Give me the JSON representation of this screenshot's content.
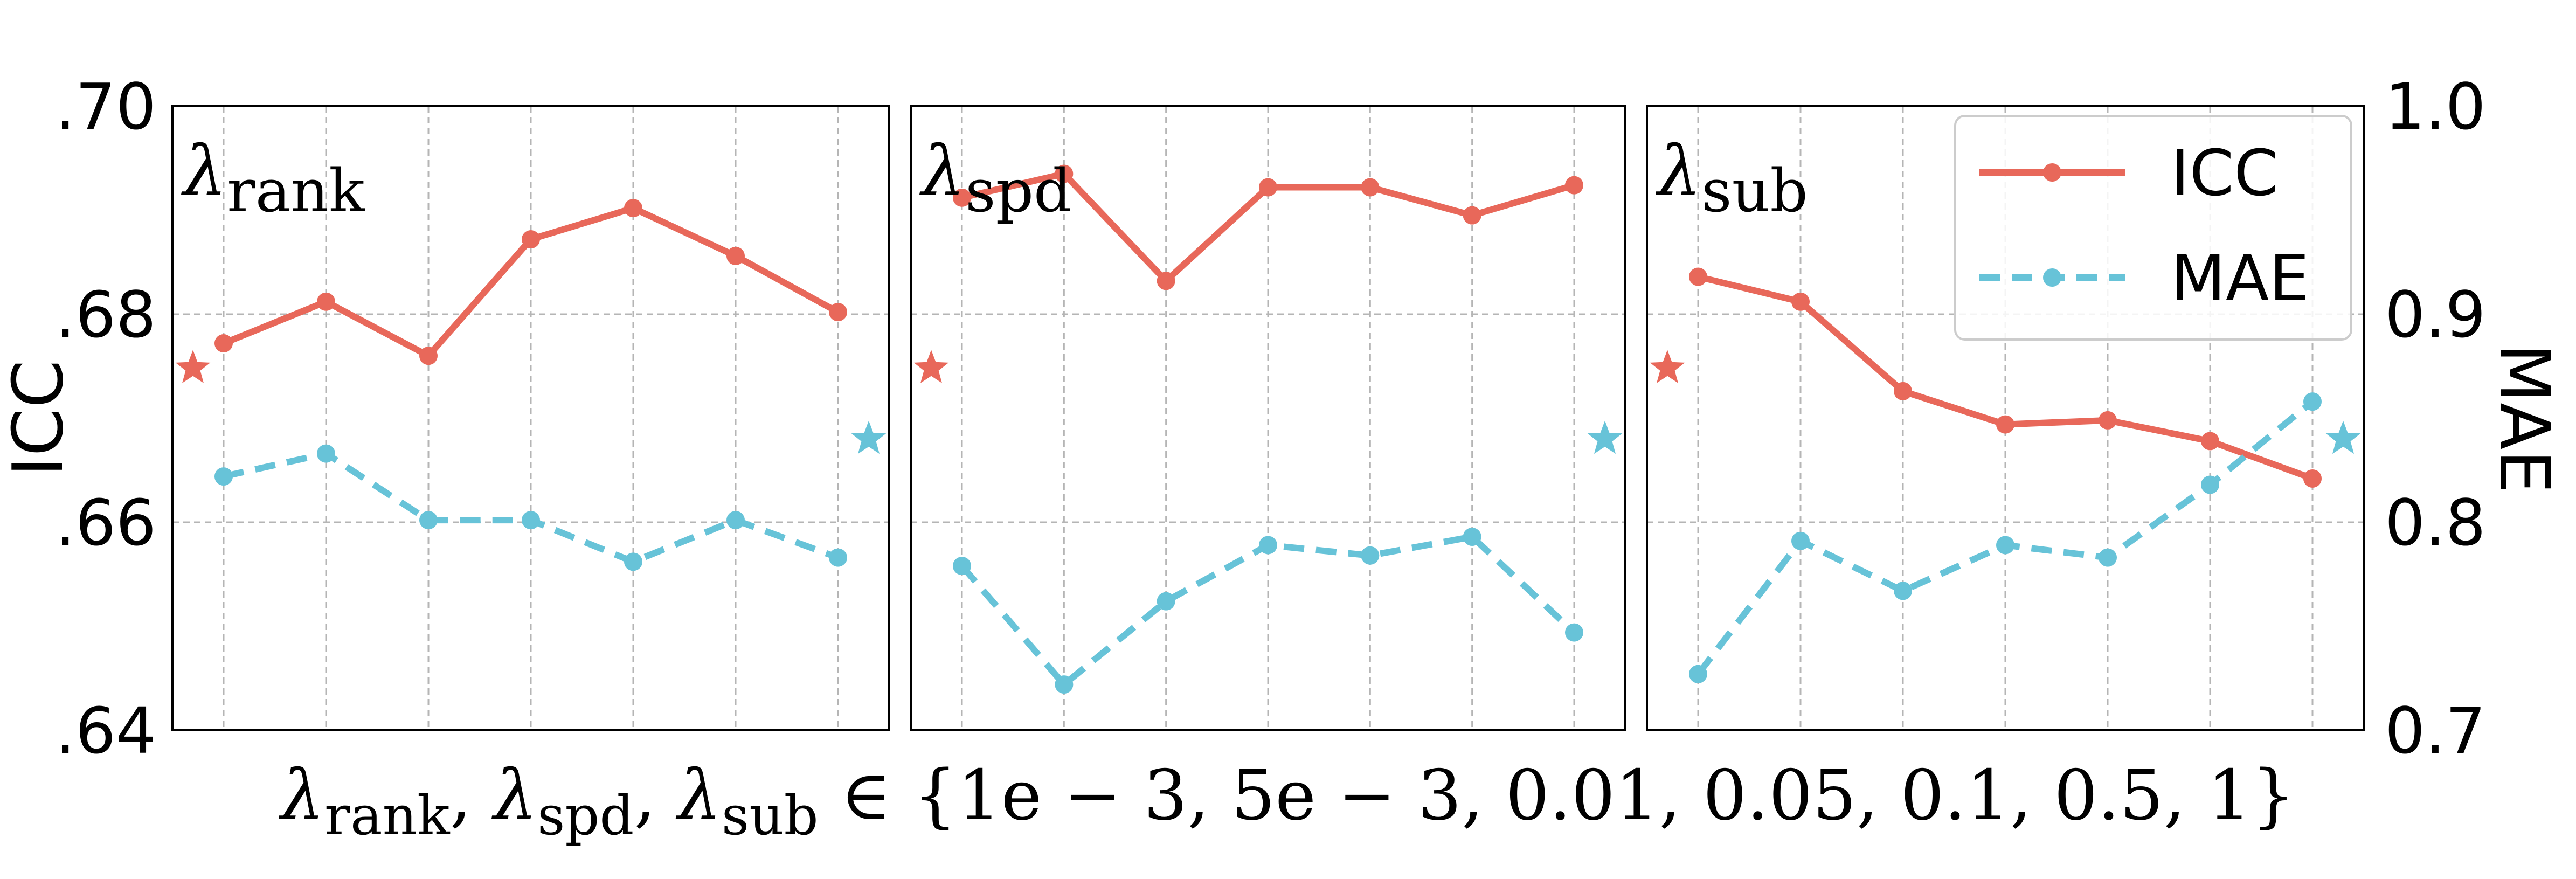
{
  "chart_data": {
    "type": "line",
    "x": [
      "1e-3",
      "5e-3",
      "0.01",
      "0.05",
      "0.1",
      "0.5",
      "1"
    ],
    "xlabel": {
      "parts": [
        "λ",
        "rank",
        ", ",
        "λ",
        "spd",
        ", ",
        "λ",
        "sub",
        " ∈ {1e − 3, 5e − 3, 0.01, 0.05, 0.1, 0.5, 1}"
      ]
    },
    "ylabel_left": "ICC",
    "ylabel_right": "MAE",
    "ylim_left": [
      0.64,
      0.7
    ],
    "ylim_right": [
      0.7,
      1.0
    ],
    "yticks_left": [
      {
        "value": 0.64,
        "label": ".64"
      },
      {
        "value": 0.66,
        "label": ".66"
      },
      {
        "value": 0.68,
        "label": ".68"
      },
      {
        "value": 0.7,
        "label": ".70"
      }
    ],
    "yticks_right": [
      {
        "value": 0.7,
        "label": "0.7"
      },
      {
        "value": 0.8,
        "label": "0.8"
      },
      {
        "value": 0.9,
        "label": "0.9"
      },
      {
        "value": 1.0,
        "label": "1.0"
      }
    ],
    "grid": true,
    "legend": {
      "placement": "top-right",
      "entries": [
        {
          "name": "ICC",
          "color": "#E8685A",
          "style": "solid"
        },
        {
          "name": "MAE",
          "color": "#67C3D8",
          "style": "dashed"
        }
      ]
    },
    "panels": [
      {
        "title_symbol": "λ",
        "title_sub": "rank",
        "series": [
          {
            "name": "ICC",
            "axis": "left",
            "values": [
              0.6772,
              0.6812,
              0.676,
              0.6872,
              0.6902,
              0.6856,
              0.6802
            ]
          },
          {
            "name": "MAE",
            "axis": "right",
            "values": [
              0.822,
              0.833,
              0.801,
              0.801,
              0.781,
              0.801,
              0.783
            ]
          }
        ],
        "reference": {
          "icc": 0.6748,
          "mae": 0.84
        }
      },
      {
        "title_symbol": "λ",
        "title_sub": "spd",
        "series": [
          {
            "name": "ICC",
            "axis": "left",
            "values": [
              0.6912,
              0.6935,
              0.6832,
              0.6922,
              0.6922,
              0.6895,
              0.6924
            ]
          },
          {
            "name": "MAE",
            "axis": "right",
            "values": [
              0.779,
              0.722,
              0.762,
              0.789,
              0.784,
              0.793,
              0.747
            ]
          }
        ],
        "reference": {
          "icc": 0.6748,
          "mae": 0.84
        }
      },
      {
        "title_symbol": "λ",
        "title_sub": "sub",
        "series": [
          {
            "name": "ICC",
            "axis": "left",
            "values": [
              0.6836,
              0.6812,
              0.6726,
              0.6694,
              0.6698,
              0.6678,
              0.6642
            ]
          },
          {
            "name": "MAE",
            "axis": "right",
            "values": [
              0.727,
              0.791,
              0.767,
              0.789,
              0.783,
              0.818,
              0.858
            ]
          }
        ],
        "reference": {
          "icc": 0.6748,
          "mae": 0.84
        }
      }
    ]
  },
  "colors": {
    "icc": "#E8685A",
    "mae": "#67C3D8",
    "grid": "#b5b5b5",
    "frame": "#000000"
  }
}
